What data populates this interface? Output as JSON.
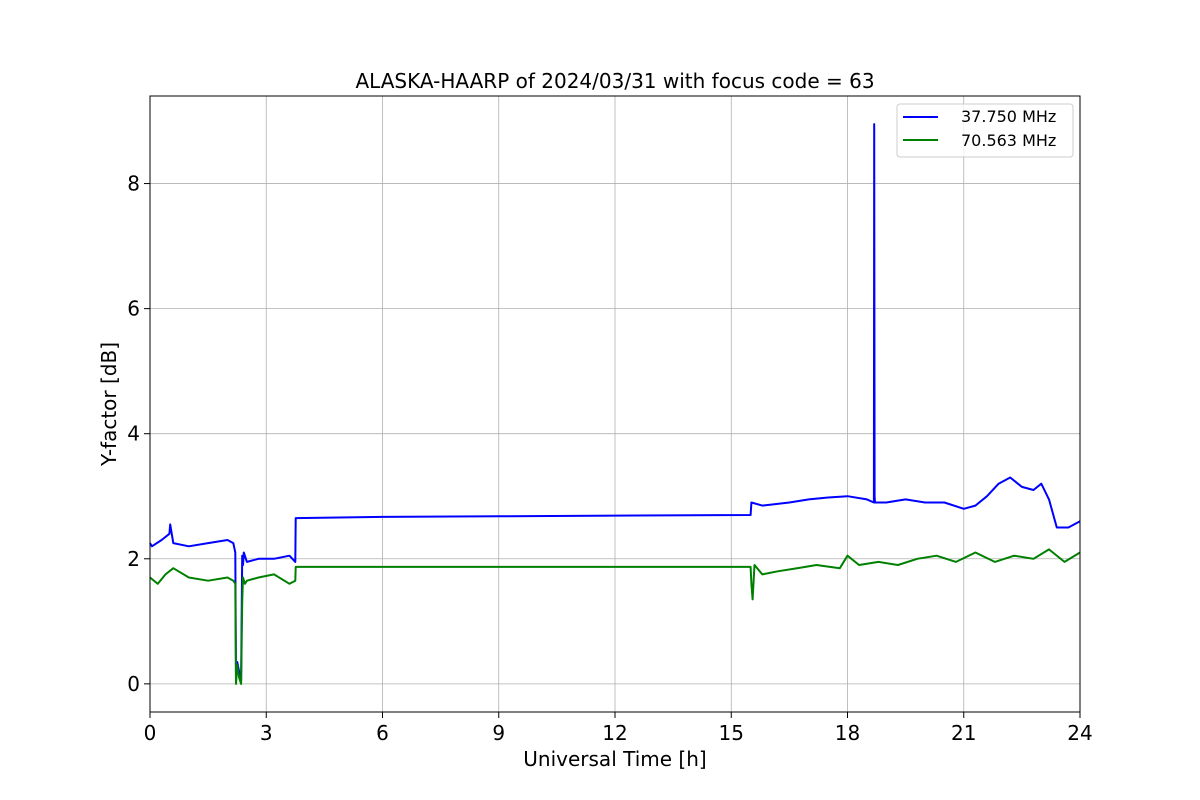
{
  "chart_data": {
    "type": "line",
    "title": "ALASKA-HAARP of 2024/03/31 with focus code = 63",
    "xlabel": "Universal Time [h]",
    "ylabel": "Y-factor [dB]",
    "xlim": [
      0,
      24
    ],
    "ylim": [
      -0.45,
      9.4
    ],
    "xticks": [
      0,
      3,
      6,
      9,
      12,
      15,
      18,
      21,
      24
    ],
    "yticks": [
      0,
      2,
      4,
      6,
      8
    ],
    "xtick_labels": [
      "0",
      "3",
      "6",
      "9",
      "12",
      "15",
      "18",
      "21",
      "24"
    ],
    "ytick_labels": [
      "0",
      "2",
      "4",
      "6",
      "8"
    ],
    "grid": true,
    "legend_position": "top-right",
    "series": [
      {
        "name": "37.750 MHz",
        "color": "#0000ff",
        "x": [
          0,
          0.05,
          0.3,
          0.5,
          0.52,
          0.6,
          1.0,
          1.5,
          2.0,
          2.15,
          2.2,
          2.22,
          2.25,
          2.3,
          2.35,
          2.38,
          2.4,
          2.42,
          2.5,
          2.8,
          3.2,
          3.6,
          3.75,
          3.76,
          6,
          9,
          12,
          15.5,
          15.52,
          15.8,
          16.5,
          17.0,
          17.5,
          18.0,
          18.5,
          18.68,
          18.69,
          18.7,
          18.71,
          19.0,
          19.5,
          20.0,
          20.5,
          21.0,
          21.3,
          21.6,
          21.9,
          22.2,
          22.5,
          22.8,
          23.0,
          23.2,
          23.4,
          23.7,
          24.0
        ],
        "y": [
          2.25,
          2.2,
          2.3,
          2.4,
          2.55,
          2.25,
          2.2,
          2.25,
          2.3,
          2.25,
          2.1,
          0.05,
          0.35,
          0.2,
          0.05,
          2.05,
          1.9,
          2.1,
          1.95,
          2.0,
          2.0,
          2.05,
          1.95,
          2.65,
          2.67,
          2.68,
          2.69,
          2.7,
          2.9,
          2.85,
          2.9,
          2.95,
          2.98,
          3.0,
          2.95,
          2.9,
          8.95,
          3.0,
          2.9,
          2.9,
          2.95,
          2.9,
          2.9,
          2.8,
          2.85,
          3.0,
          3.2,
          3.3,
          3.15,
          3.1,
          3.2,
          2.95,
          2.5,
          2.5,
          2.6
        ]
      },
      {
        "name": "70.563 MHz",
        "color": "#008000",
        "x": [
          0,
          0.2,
          0.4,
          0.6,
          1.0,
          1.5,
          2.0,
          2.15,
          2.2,
          2.22,
          2.25,
          2.3,
          2.35,
          2.38,
          2.4,
          2.45,
          2.5,
          2.8,
          3.2,
          3.6,
          3.75,
          3.76,
          6,
          9,
          12,
          15.5,
          15.52,
          15.55,
          15.6,
          15.8,
          16.2,
          16.7,
          17.2,
          17.8,
          18.0,
          18.3,
          18.8,
          19.3,
          19.8,
          20.3,
          20.8,
          21.3,
          21.8,
          22.3,
          22.8,
          23.2,
          23.6,
          24.0
        ],
        "y": [
          1.7,
          1.6,
          1.75,
          1.85,
          1.7,
          1.65,
          1.7,
          1.65,
          1.6,
          0.0,
          0.3,
          0.1,
          0.0,
          1.3,
          1.7,
          1.6,
          1.65,
          1.7,
          1.75,
          1.6,
          1.65,
          1.87,
          1.87,
          1.87,
          1.87,
          1.87,
          1.6,
          1.35,
          1.9,
          1.75,
          1.8,
          1.85,
          1.9,
          1.85,
          2.05,
          1.9,
          1.95,
          1.9,
          2.0,
          2.05,
          1.95,
          2.1,
          1.95,
          2.05,
          2.0,
          2.15,
          1.95,
          2.1
        ]
      }
    ]
  }
}
